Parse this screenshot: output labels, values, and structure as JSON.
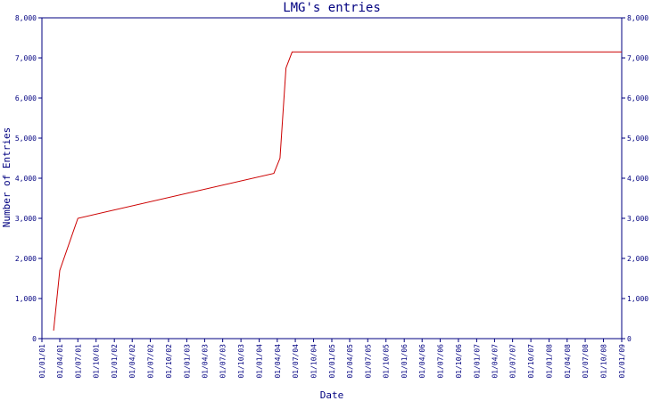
{
  "chart_data": {
    "type": "line",
    "title": "LMG's entries",
    "xlabel": "Date",
    "ylabel": "Number of Entries",
    "ylim": [
      0,
      8000
    ],
    "y_ticks": [
      0,
      1000,
      2000,
      3000,
      4000,
      5000,
      6000,
      7000,
      8000
    ],
    "y_tick_labels": [
      "0",
      "1,000",
      "2,000",
      "3,000",
      "4,000",
      "5,000",
      "6,000",
      "7,000",
      "8,000"
    ],
    "x_tick_labels": [
      "01/01/01",
      "01/04/01",
      "01/07/01",
      "01/10/01",
      "01/01/02",
      "01/04/02",
      "01/07/02",
      "01/10/02",
      "01/01/03",
      "01/04/03",
      "01/07/03",
      "01/10/03",
      "01/01/04",
      "01/04/04",
      "01/07/04",
      "01/10/04",
      "01/01/05",
      "01/04/05",
      "01/07/05",
      "01/10/05",
      "01/01/06",
      "01/04/06",
      "01/07/06",
      "01/10/06",
      "01/01/07",
      "01/04/07",
      "01/07/07",
      "01/10/07",
      "01/01/08",
      "01/04/08",
      "01/07/08",
      "01/10/08",
      "01/01/09"
    ],
    "grid": false,
    "legend": "none",
    "series": [
      {
        "color": "#cc0000",
        "x": [
          "2001-03-01",
          "2001-04-01",
          "2001-07-01",
          "2004-03-15",
          "2004-04-15",
          "2004-05-15",
          "2004-06-15",
          "2009-01-01"
        ],
        "y": [
          200,
          1700,
          3000,
          4120,
          4500,
          6750,
          7150,
          7150
        ]
      }
    ]
  }
}
